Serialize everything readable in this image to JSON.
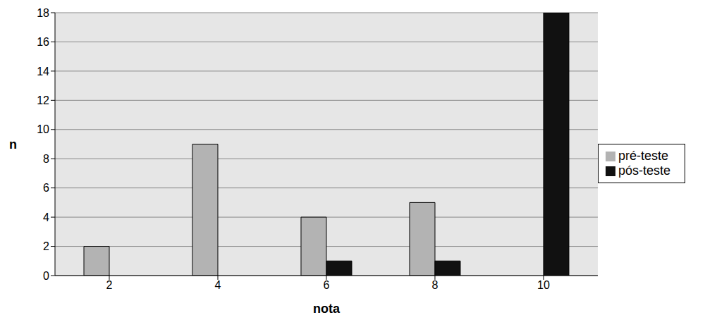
{
  "chart_data": {
    "type": "bar",
    "x_label": "nota",
    "y_label": "n",
    "categories": [
      "2",
      "4",
      "6",
      "8",
      "10"
    ],
    "series": [
      {
        "name": "pré-teste",
        "color": "#b3b3b3",
        "values": [
          2,
          9,
          4,
          5,
          0
        ]
      },
      {
        "name": "pós-teste",
        "color": "#111111",
        "values": [
          0,
          0,
          1,
          1,
          18
        ]
      }
    ],
    "ylim": [
      0,
      18
    ],
    "yticks": [
      0,
      2,
      4,
      6,
      8,
      10,
      12,
      14,
      16,
      18
    ],
    "grid": true,
    "legend": "right"
  }
}
